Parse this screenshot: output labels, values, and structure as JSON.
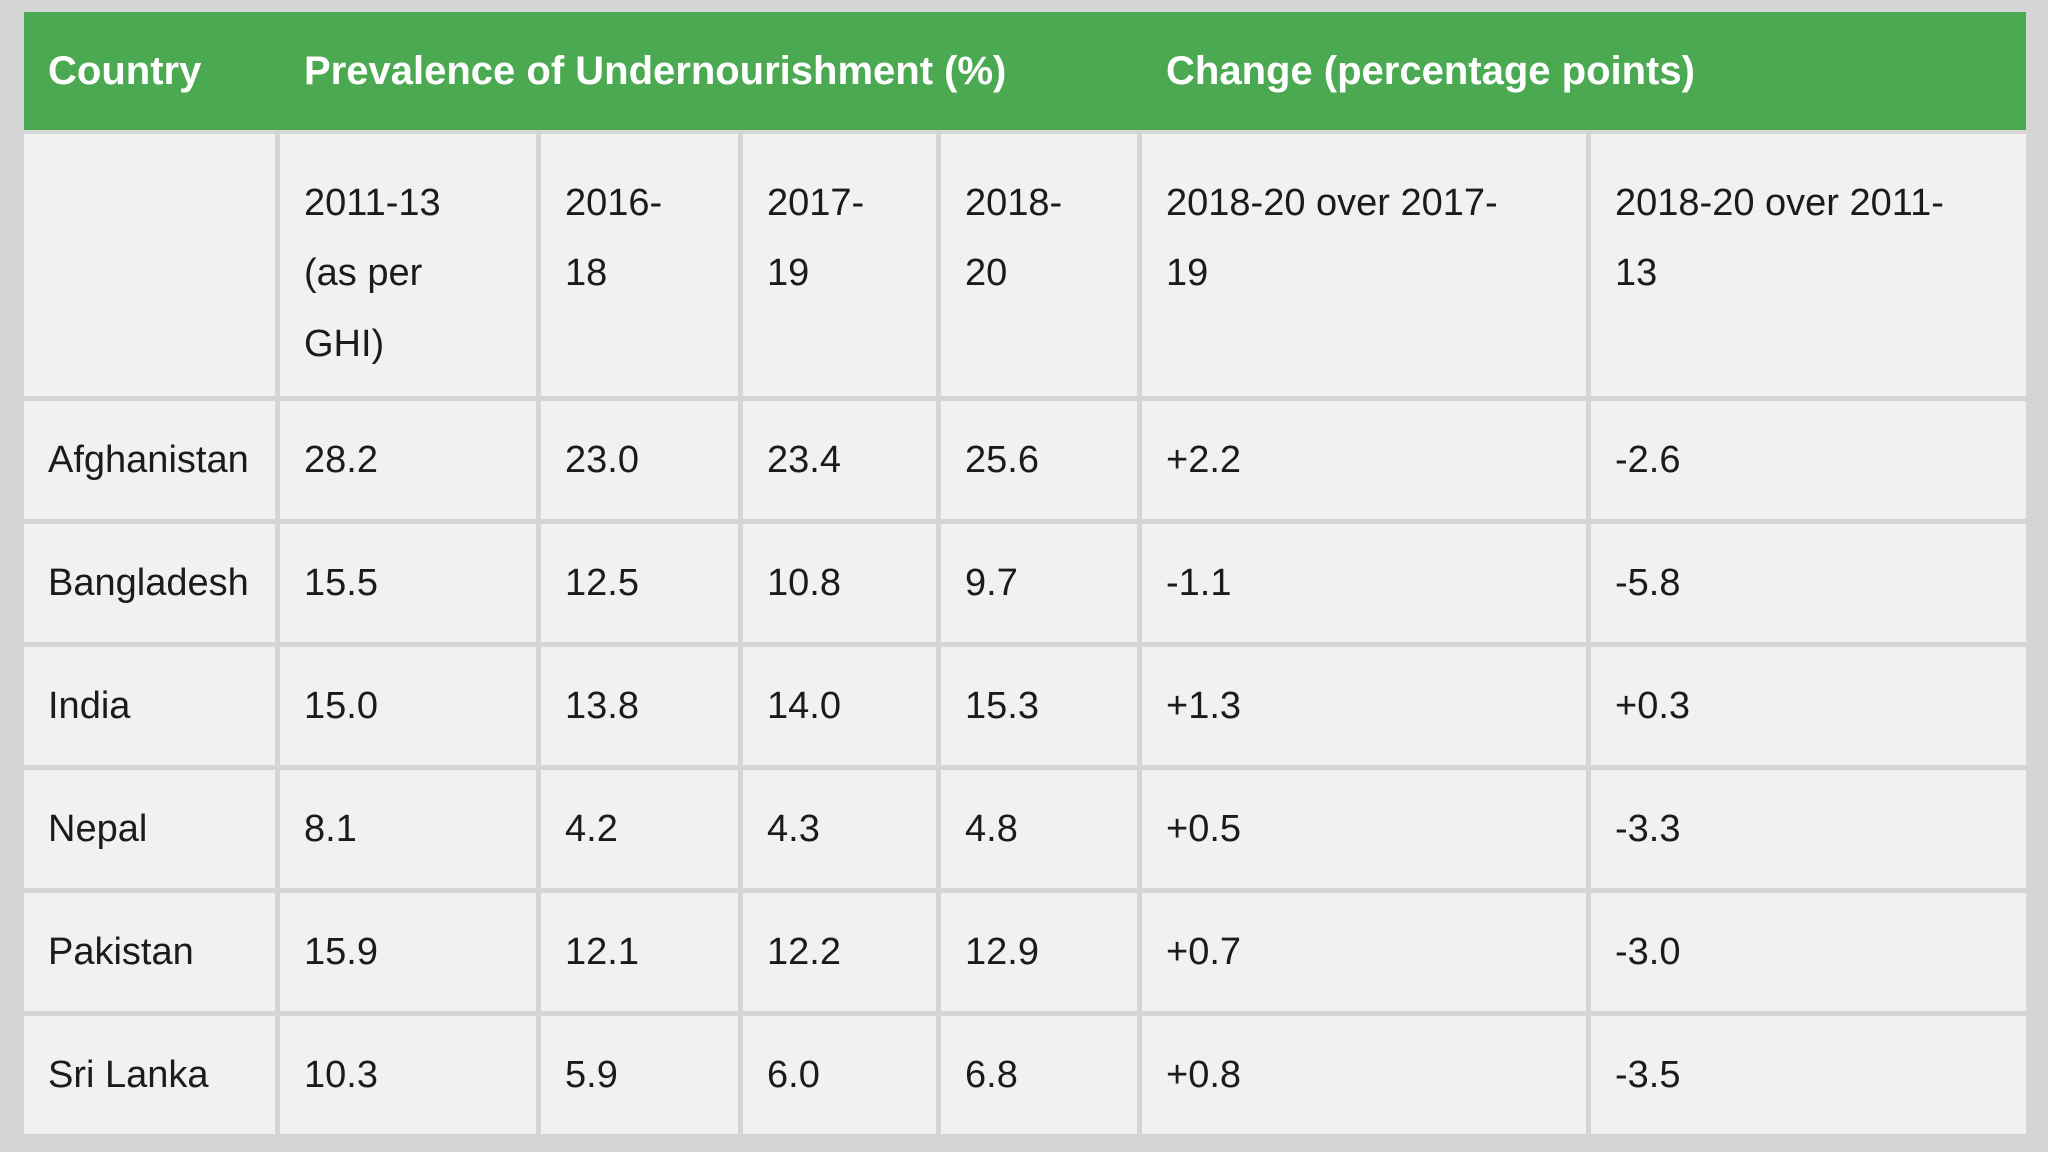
{
  "table": {
    "header": {
      "country": "Country",
      "prevalence": "Prevalence of Undernourishment (%)",
      "change": "Change (percentage points)"
    },
    "subheader": {
      "col1": "",
      "col2": "2011-13\n(as per\nGHI)",
      "col3": "2016-\n18",
      "col4": "2017-\n19",
      "col5": "2018-\n20",
      "col6": "2018-20 over 2017-\n19",
      "col7": "2018-20 over 2011-\n13"
    },
    "rows": [
      {
        "country": "Afghanistan",
        "v1": "28.2",
        "v2": "23.0",
        "v3": "23.4",
        "v4": "25.6",
        "c1": "+2.2",
        "c2": "-2.6"
      },
      {
        "country": "Bangladesh",
        "v1": "15.5",
        "v2": "12.5",
        "v3": "10.8",
        "v4": "9.7",
        "c1": "-1.1",
        "c2": "-5.8"
      },
      {
        "country": "India",
        "v1": "15.0",
        "v2": "13.8",
        "v3": "14.0",
        "v4": "15.3",
        "c1": "+1.3",
        "c2": "+0.3"
      },
      {
        "country": "Nepal",
        "v1": "8.1",
        "v2": "4.2",
        "v3": "4.3",
        "v4": "4.8",
        "c1": "+0.5",
        "c2": "-3.3"
      },
      {
        "country": "Pakistan",
        "v1": "15.9",
        "v2": "12.1",
        "v3": "12.2",
        "v4": "12.9",
        "c1": "+0.7",
        "c2": "-3.0"
      },
      {
        "country": "Sri Lanka",
        "v1": "10.3",
        "v2": "5.9",
        "v3": "6.0",
        "v4": "6.8",
        "c1": "+0.8",
        "c2": "-3.5"
      }
    ]
  },
  "colors": {
    "header_green": "#4baa51",
    "header_text": "#ffffff",
    "cell_background": "#f1f1f1",
    "cell_text": "#1b1b1b",
    "page_background": "#d5d5d5"
  },
  "chart_data": {
    "type": "table",
    "title": "Prevalence of Undernourishment (%) and Change (percentage points)",
    "columns": [
      "Country",
      "2011-13 (as per GHI)",
      "2016-18",
      "2017-19",
      "2018-20",
      "2018-20 over 2017-19",
      "2018-20 over 2011-13"
    ],
    "column_groups": [
      {
        "label": "Prevalence of Undernourishment (%)",
        "columns": [
          "2011-13 (as per GHI)",
          "2016-18",
          "2017-19",
          "2018-20"
        ]
      },
      {
        "label": "Change (percentage points)",
        "columns": [
          "2018-20 over 2017-19",
          "2018-20 over 2011-13"
        ]
      }
    ],
    "rows": [
      [
        "Afghanistan",
        "28.2",
        "23.0",
        "23.4",
        "25.6",
        "+2.2",
        "-2.6"
      ],
      [
        "Bangladesh",
        "15.5",
        "12.5",
        "10.8",
        "9.7",
        "-1.1",
        "-5.8"
      ],
      [
        "India",
        "15.0",
        "13.8",
        "14.0",
        "15.3",
        "+1.3",
        "+0.3"
      ],
      [
        "Nepal",
        "8.1",
        "4.2",
        "4.3",
        "4.8",
        "+0.5",
        "-3.3"
      ],
      [
        "Pakistan",
        "15.9",
        "12.1",
        "12.2",
        "12.9",
        "+0.7",
        "-3.0"
      ],
      [
        "Sri Lanka",
        "10.3",
        "5.9",
        "6.0",
        "6.8",
        "+0.8",
        "-3.5"
      ]
    ]
  }
}
